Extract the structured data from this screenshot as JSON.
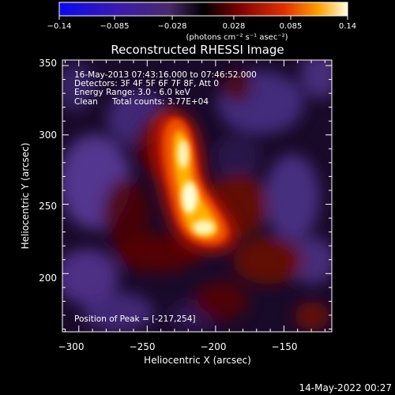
{
  "image": {
    "title": "Reconstructed RHESSI Image",
    "annotations": {
      "time_range": "16-May-2013 07:43:16.000 to 07:46:52.000",
      "detectors": "Detectors: 3F 4F 5F 6F 7F 8F, Att 0",
      "energy": "Energy Range: 3.0 - 6.0 keV",
      "method": "Clean",
      "counts": "Total counts: 3.77E+04",
      "peak": "Position of Peak = [-217,254]"
    },
    "colorbar": {
      "tick_labels": [
        "−0.14",
        "−0.085",
        "−0.028",
        "0.028",
        "0.085",
        "0.14"
      ],
      "unit_label": "(photons cm⁻² s⁻¹ asec⁻²)"
    },
    "x_axis": {
      "label": "Heliocentric X (arcsec)",
      "ticks": [
        -300,
        -250,
        -200,
        -150
      ],
      "tick_labels": [
        "−300",
        "−250",
        "−200",
        "−150"
      ],
      "range": [
        -312,
        -115
      ]
    },
    "y_axis": {
      "label": "Heliocentric Y (arcsec)",
      "ticks": [
        200,
        250,
        300,
        350
      ],
      "tick_labels": [
        "200",
        "250",
        "300",
        "350"
      ],
      "range": [
        158,
        354
      ]
    },
    "peak": {
      "x": -217,
      "y": 254
    },
    "footer_date": "14-May-2022 00:27"
  }
}
